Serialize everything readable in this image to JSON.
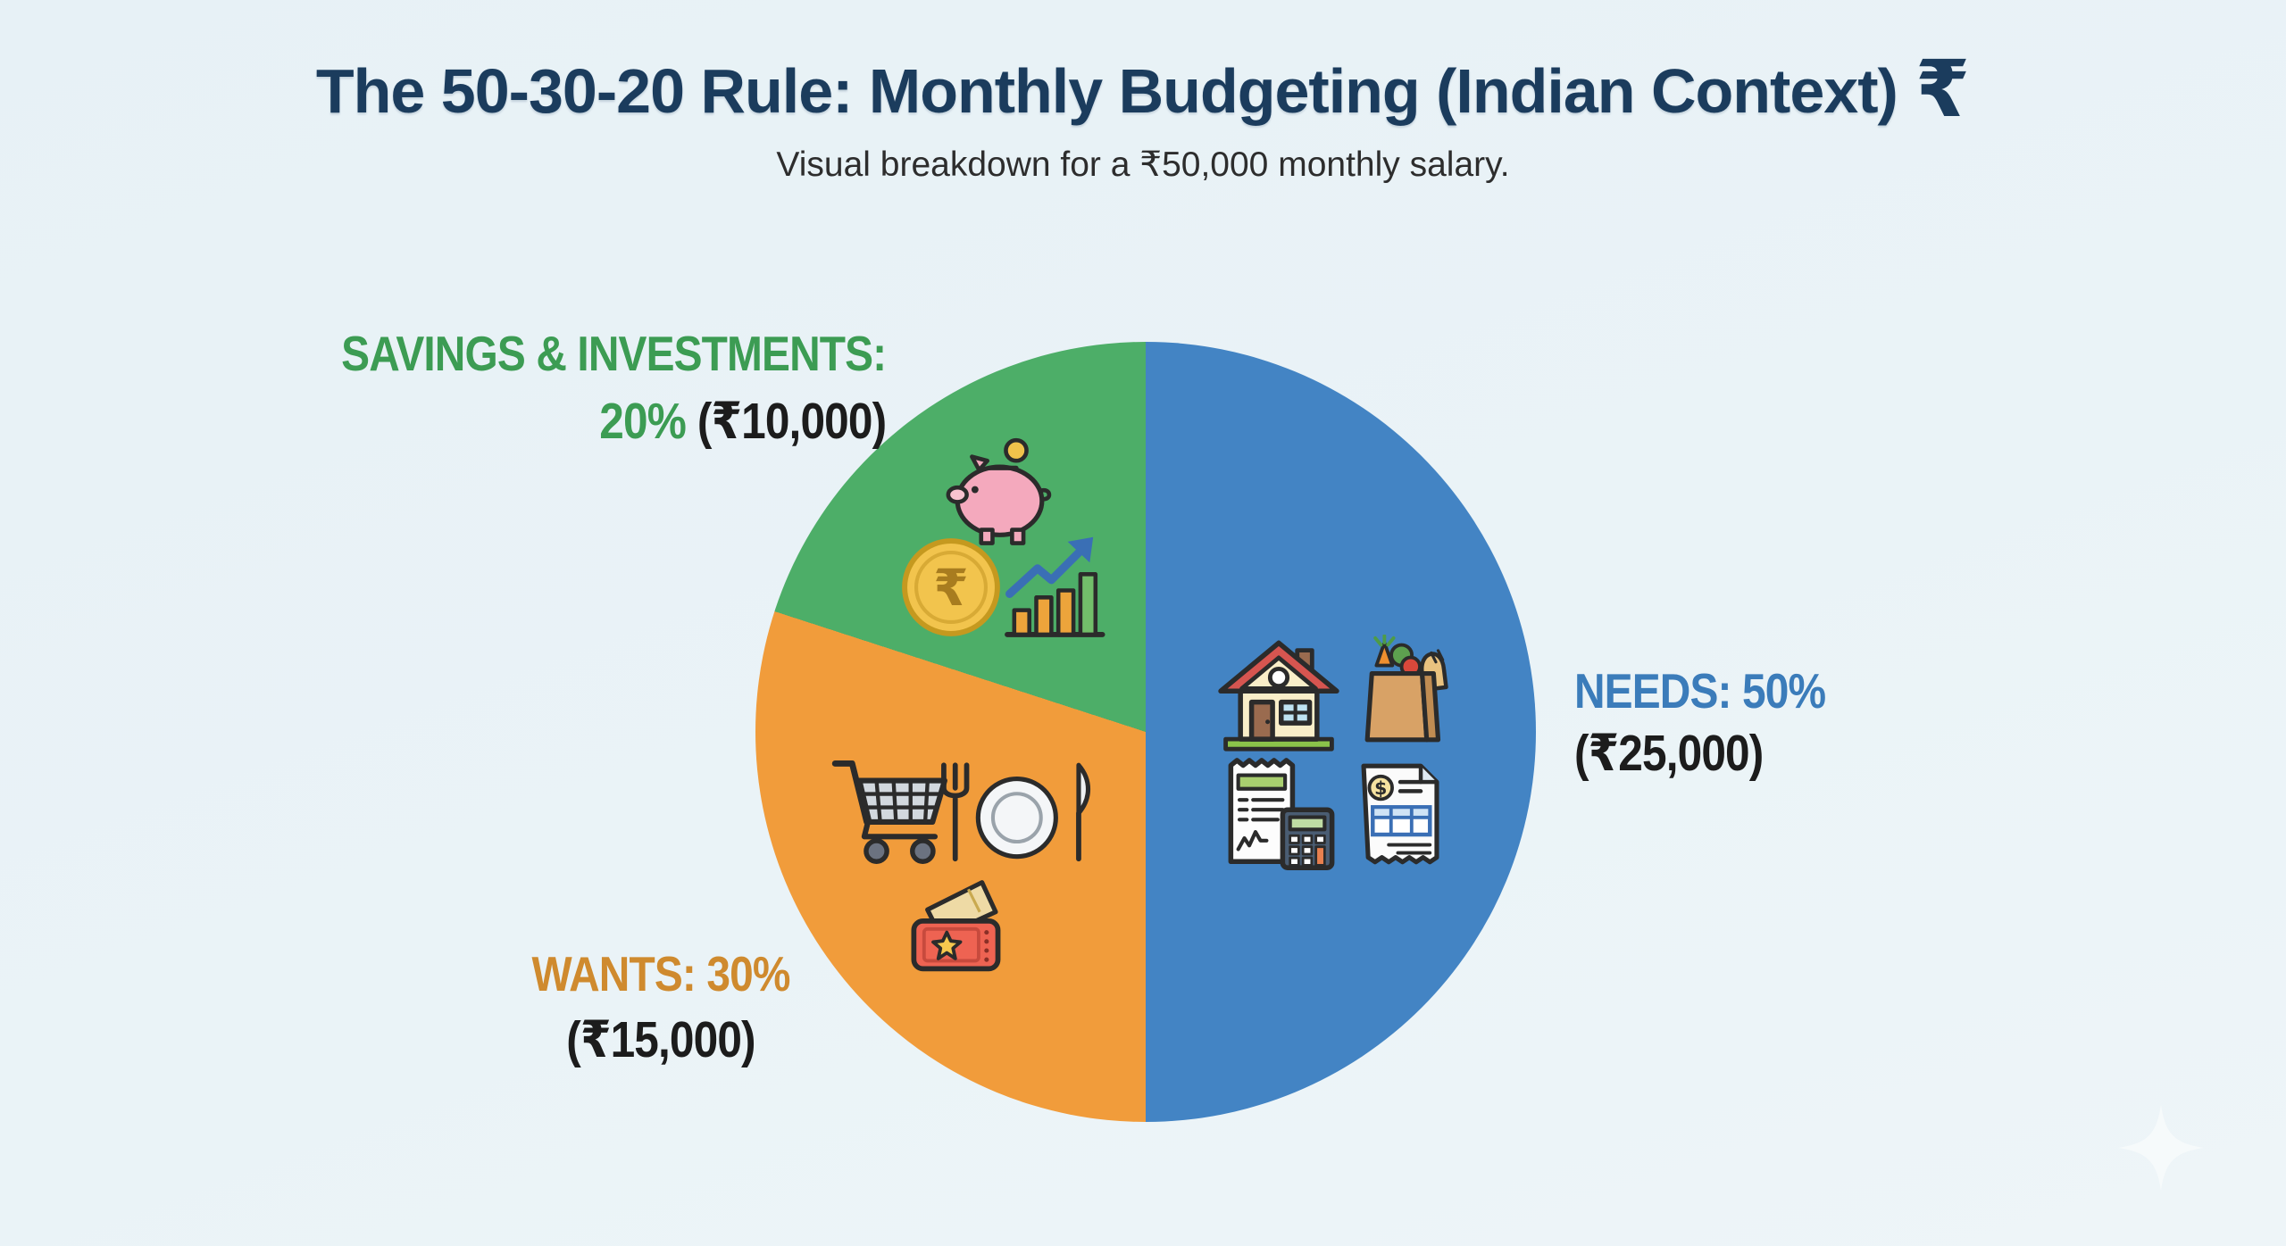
{
  "theme": {
    "background": "#e9f2f6",
    "title_color": "#1b3c5d",
    "amount_text_color": "#1c1c1c"
  },
  "header": {
    "title": "The 50-30-20 Rule: Monthly Budgeting (Indian Context)",
    "rupee_symbol": "₹",
    "subtitle": "Visual breakdown for a ₹50,000 monthly salary."
  },
  "chart_data": {
    "type": "pie",
    "title": "The 50-30-20 Rule: Monthly Budgeting (Indian Context)",
    "subtitle": "Visual breakdown for a ₹50,000 monthly salary.",
    "currency": "INR",
    "total_salary": 50000,
    "start_angle_deg": 0,
    "direction": "clockwise",
    "legend_position": "around-pie",
    "slices": [
      {
        "name": "NEEDS",
        "percent": 50,
        "amount": 25000,
        "color": "#4384c4",
        "label_color": "#3b7cba",
        "title_label": "NEEDS: 50%",
        "amount_label": "(₹25,000)",
        "icons": [
          "house-icon",
          "grocery-bag-icon",
          "bill-calculator-icon",
          "invoice-icon"
        ]
      },
      {
        "name": "WANTS",
        "percent": 30,
        "amount": 15000,
        "color": "#f19c3b",
        "label_color": "#cf8a2e",
        "title_label": "WANTS: 30%",
        "amount_label": "(₹15,000)",
        "icons": [
          "shopping-cart-icon",
          "dining-icon",
          "ticket-icon"
        ]
      },
      {
        "name": "SAVINGS & INVESTMENTS",
        "percent": 20,
        "amount": 10000,
        "color": "#4dae68",
        "label_color": "#3c9c53",
        "title_label": "SAVINGS & INVESTMENTS:",
        "percent_label": "20%",
        "amount_label": "(₹10,000)",
        "icons": [
          "piggy-bank-icon",
          "rupee-coin-icon",
          "growth-chart-icon"
        ]
      }
    ],
    "watermark": "sparkle-icon"
  }
}
